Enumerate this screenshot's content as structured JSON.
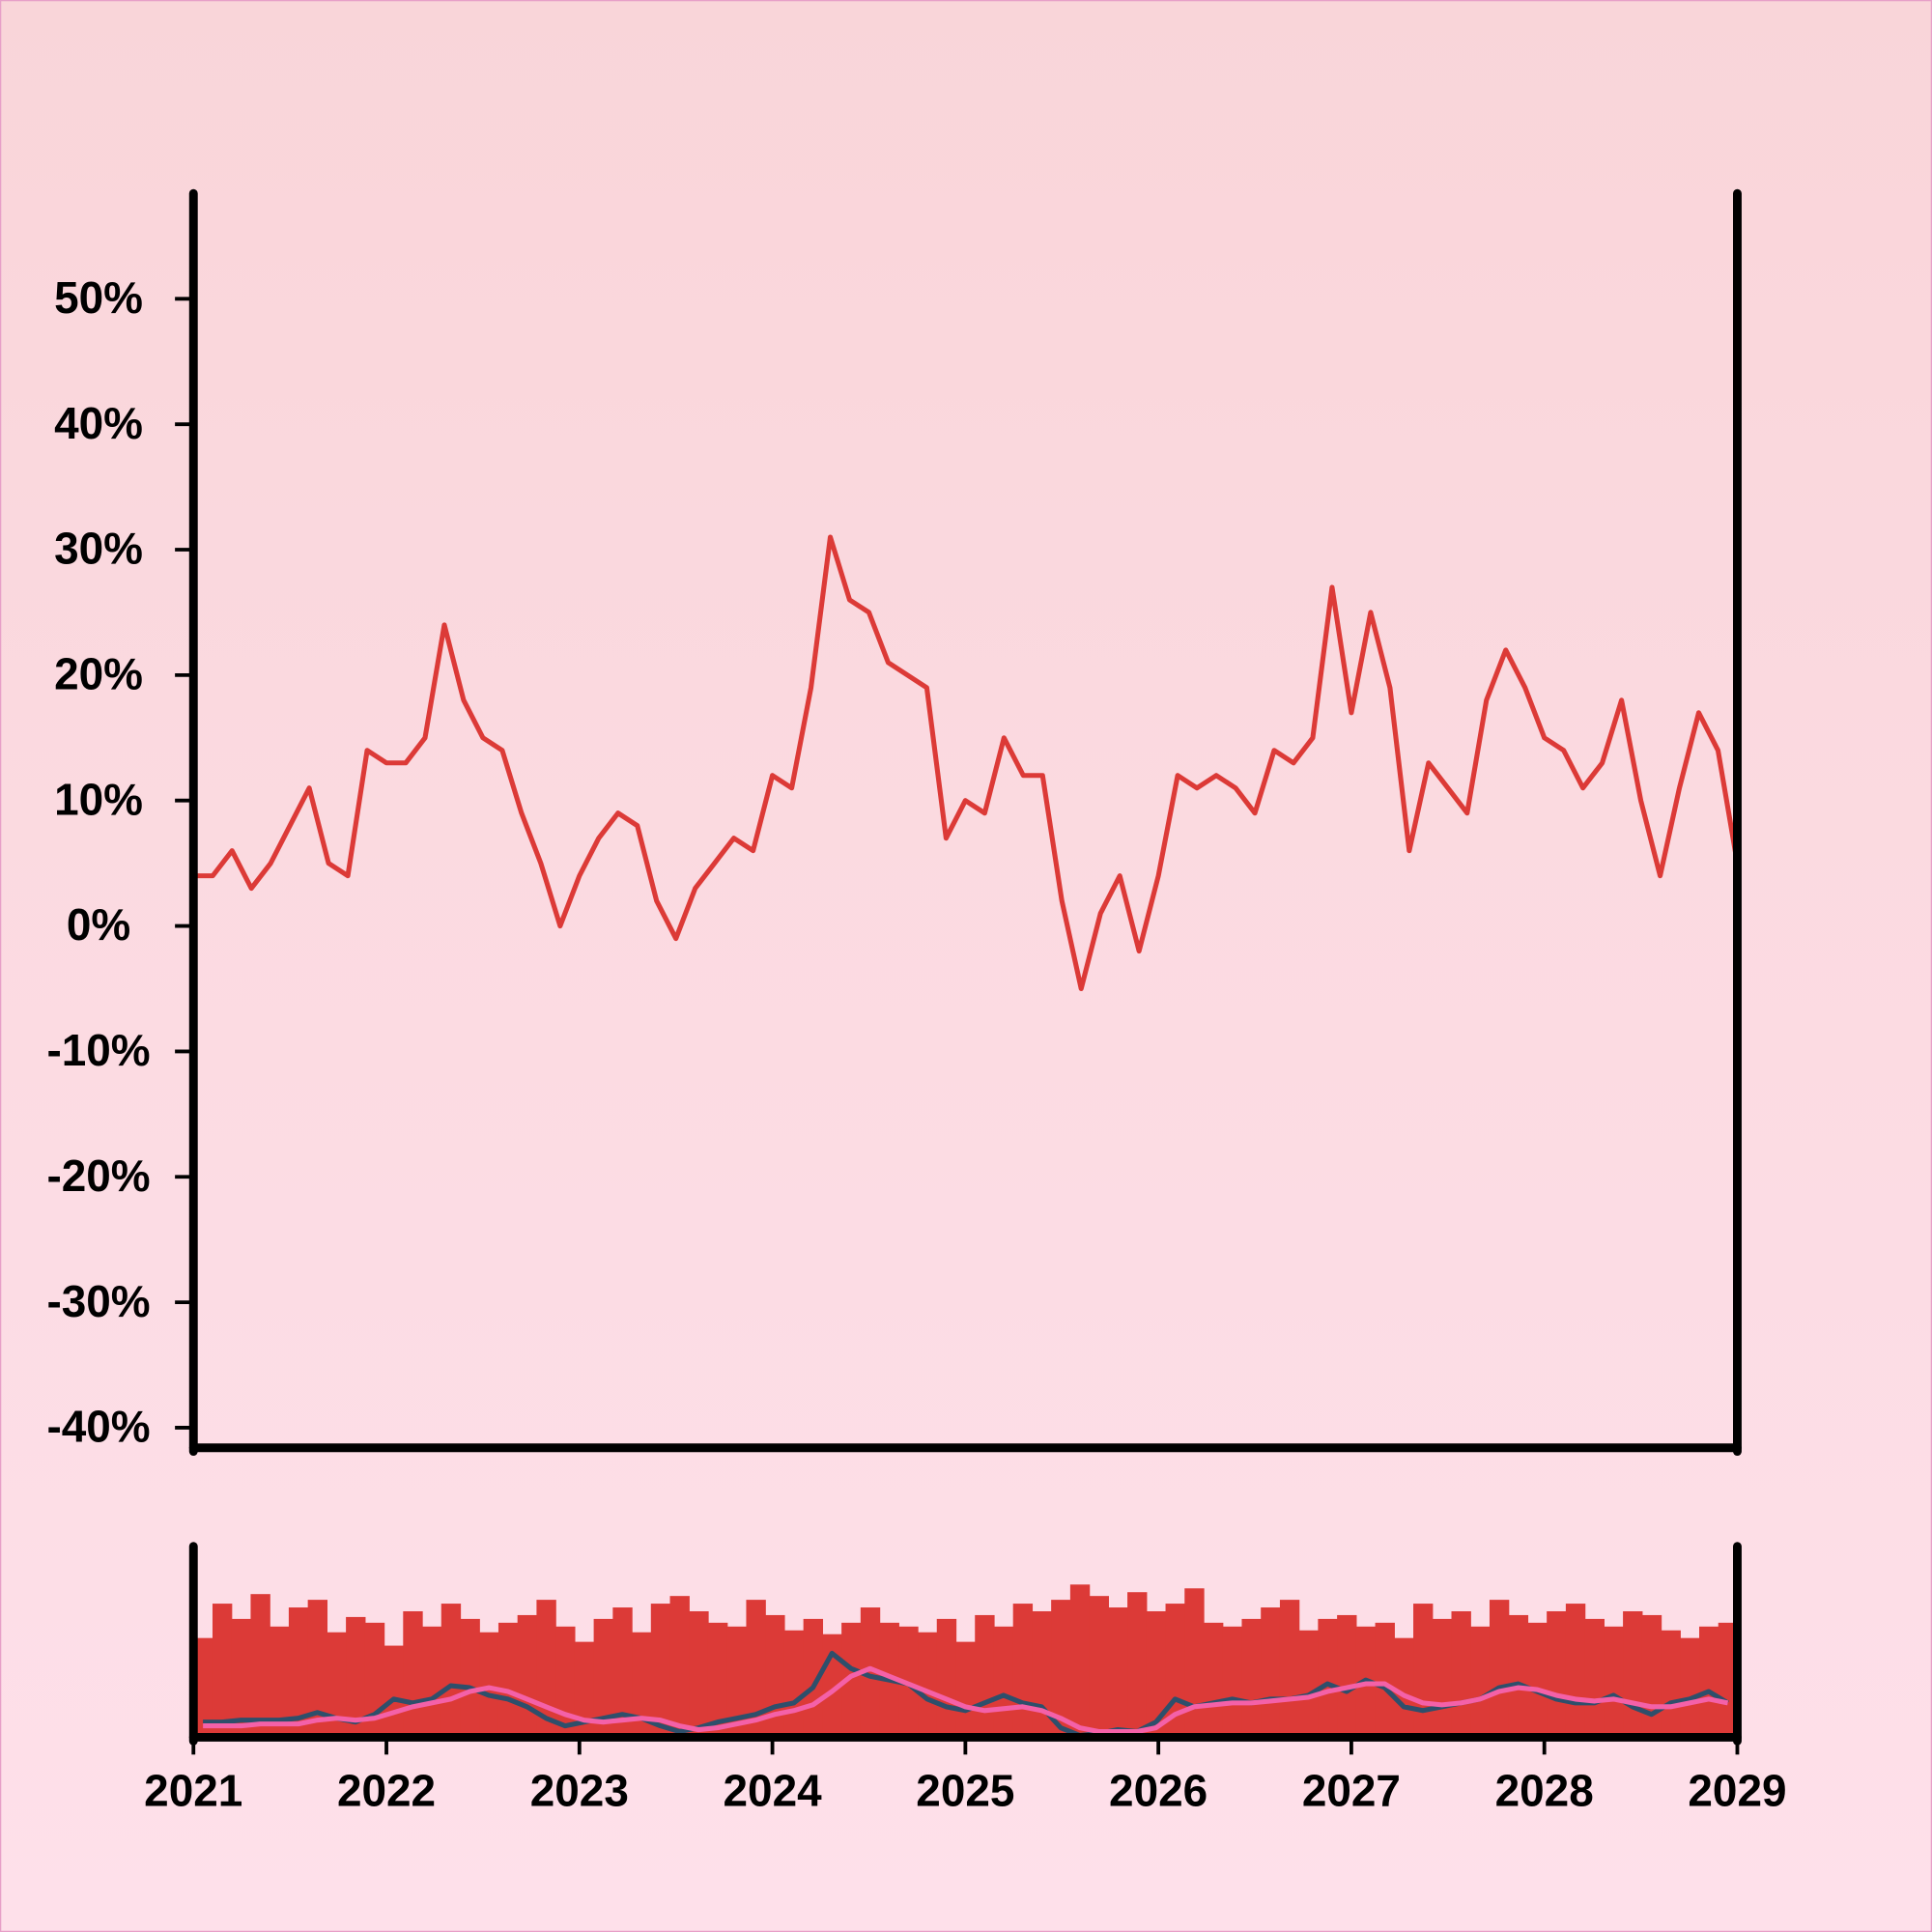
{
  "chart_data": [
    {
      "type": "line",
      "color": "#dc3a37",
      "x": [
        2021.0,
        2021.1,
        2021.2,
        2021.3,
        2021.4,
        2021.5,
        2021.6,
        2021.7,
        2021.8,
        2021.9,
        2022.0,
        2022.1,
        2022.2,
        2022.3,
        2022.4,
        2022.5,
        2022.6,
        2022.7,
        2022.8,
        2022.9,
        2023.0,
        2023.1,
        2023.2,
        2023.3,
        2023.4,
        2023.5,
        2023.6,
        2023.7,
        2023.8,
        2023.9,
        2024.0,
        2024.1,
        2024.2,
        2024.3,
        2024.4,
        2024.5,
        2024.6,
        2024.7,
        2024.8,
        2024.9,
        2025.0,
        2025.1,
        2025.2,
        2025.3,
        2025.4,
        2025.5,
        2025.6,
        2025.7,
        2025.8,
        2025.9,
        2026.0,
        2026.1,
        2026.2,
        2026.3,
        2026.4,
        2026.5,
        2026.6,
        2026.7,
        2026.8,
        2026.9,
        2027.0,
        2027.1,
        2027.2,
        2027.3,
        2027.4,
        2027.5,
        2027.6,
        2027.7,
        2027.8,
        2027.9,
        2028.0,
        2028.1,
        2028.2,
        2028.3,
        2028.4,
        2028.5,
        2028.6,
        2028.7,
        2028.8,
        2028.9,
        2029.0
      ],
      "values": [
        4,
        4,
        6,
        3,
        5,
        8,
        11,
        5,
        4,
        14,
        13,
        13,
        15,
        24,
        18,
        15,
        14,
        9,
        5,
        0,
        4,
        7,
        9,
        8,
        2,
        -1,
        3,
        5,
        7,
        6,
        12,
        11,
        19,
        31,
        26,
        25,
        21,
        20,
        19,
        7,
        10,
        9,
        15,
        12,
        12,
        2,
        -5,
        1,
        4,
        -2,
        4,
        12,
        11,
        12,
        11,
        9,
        14,
        13,
        15,
        27,
        17,
        25,
        19,
        6,
        13,
        11,
        9,
        18,
        22,
        19,
        15,
        14,
        11,
        13,
        18,
        10,
        4,
        11,
        17,
        14,
        5
      ],
      "xlim": [
        2021,
        2029
      ],
      "ylim": [
        -41.6,
        58.4
      ],
      "yticks": [
        {
          "value": -40,
          "label": "-40%"
        },
        {
          "value": -30,
          "label": "-30%"
        },
        {
          "value": -20,
          "label": "-20%"
        },
        {
          "value": -10,
          "label": "-10%"
        },
        {
          "value": 0,
          "label": "0%"
        },
        {
          "value": 10,
          "label": "10%"
        },
        {
          "value": 20,
          "label": "20%"
        },
        {
          "value": 30,
          "label": "30%"
        },
        {
          "value": 40,
          "label": "40%"
        },
        {
          "value": 50,
          "label": "50%"
        }
      ]
    },
    {
      "type": "bar",
      "xlim": [
        2021,
        2029
      ],
      "xticks": [
        2021,
        2022,
        2023,
        2024,
        2025,
        2026,
        2027,
        2028,
        2029
      ],
      "ylim": [
        0,
        100
      ],
      "series": [
        {
          "type": "bar",
          "color": "#dc3a37",
          "values": [
            52,
            70,
            62,
            75,
            58,
            68,
            72,
            55,
            63,
            60,
            48,
            66,
            58,
            70,
            62,
            55,
            60,
            64,
            72,
            58,
            50,
            62,
            68,
            55,
            70,
            74,
            66,
            60,
            58,
            72,
            64,
            56,
            62,
            54,
            60,
            68,
            60,
            58,
            55,
            62,
            50,
            64,
            58,
            70,
            66,
            72,
            80,
            74,
            68,
            76,
            66,
            70,
            78,
            60,
            58,
            62,
            68,
            72,
            56,
            62,
            64,
            58,
            60,
            52,
            70,
            62,
            66,
            58,
            72,
            64,
            60,
            66,
            70,
            62,
            58,
            66,
            64,
            56,
            52,
            58,
            60
          ]
        },
        {
          "type": "line",
          "color": "#2e4f6b",
          "values": [
            8,
            8,
            9,
            9,
            9,
            10,
            13,
            10,
            8,
            12,
            20,
            18,
            20,
            27,
            26,
            22,
            20,
            16,
            10,
            6,
            8,
            10,
            12,
            10,
            6,
            3,
            5,
            8,
            10,
            12,
            16,
            18,
            26,
            44,
            36,
            32,
            30,
            28,
            20,
            16,
            14,
            18,
            22,
            18,
            16,
            5,
            1,
            2,
            4,
            3,
            8,
            20,
            16,
            18,
            20,
            18,
            20,
            20,
            22,
            28,
            24,
            30,
            26,
            16,
            14,
            16,
            18,
            20,
            26,
            28,
            24,
            20,
            18,
            18,
            22,
            16,
            12,
            18,
            20,
            24,
            18
          ]
        },
        {
          "type": "line",
          "color": "#f461a8",
          "values": [
            6,
            6,
            6,
            7,
            7,
            7,
            9,
            10,
            9,
            10,
            13,
            16,
            18,
            20,
            24,
            26,
            24,
            20,
            16,
            12,
            9,
            8,
            9,
            10,
            9,
            6,
            4,
            5,
            7,
            9,
            12,
            14,
            17,
            24,
            32,
            36,
            32,
            28,
            24,
            20,
            16,
            14,
            15,
            16,
            14,
            10,
            5,
            3,
            3,
            3,
            5,
            12,
            16,
            17,
            18,
            18,
            19,
            20,
            21,
            24,
            26,
            28,
            28,
            22,
            18,
            17,
            18,
            20,
            24,
            26,
            25,
            22,
            20,
            19,
            20,
            18,
            16,
            16,
            18,
            20,
            18
          ]
        }
      ]
    }
  ]
}
